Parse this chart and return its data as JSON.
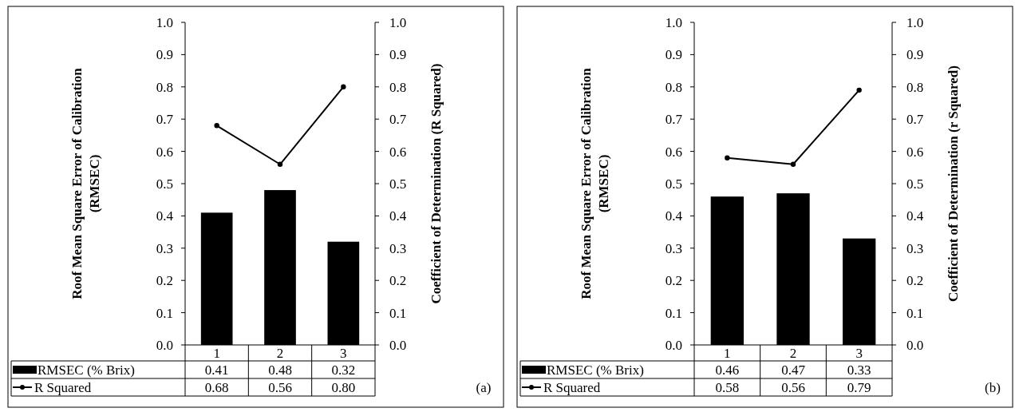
{
  "chart_data": [
    {
      "type": "bar",
      "categories": [
        "1",
        "2",
        "3"
      ],
      "series": [
        {
          "name": "RMSEC (% Brix)",
          "color": "#000000",
          "values": [
            0.41,
            0.48,
            0.32
          ],
          "value_labels": [
            "0.41",
            "0.48",
            "0.32"
          ]
        },
        {
          "name": "R Squared",
          "type": "line",
          "axis": "y2",
          "color": "#000000",
          "values": [
            0.68,
            0.56,
            0.8
          ],
          "value_labels": [
            "0.68",
            "0.56",
            "0.80"
          ]
        }
      ],
      "ylabel": "Roof Mean Square Error of Calibration (RMSEC)",
      "y2label": "Coefficient of Determination (R Squared)",
      "ylim": [
        0,
        1
      ],
      "yticks": [
        {
          "value": 0,
          "label": "0.0"
        },
        {
          "value": 0.1,
          "label": "0.1"
        },
        {
          "value": 0.2,
          "label": "0.2"
        },
        {
          "value": 0.3,
          "label": "0.3"
        },
        {
          "value": 0.4,
          "label": "0.4"
        },
        {
          "value": 0.5,
          "label": "0.5"
        },
        {
          "value": 0.6,
          "label": "0.6"
        },
        {
          "value": 0.7,
          "label": "0.7"
        },
        {
          "value": 0.8,
          "label": "0.8"
        },
        {
          "value": 0.9,
          "label": "0.9"
        },
        {
          "value": 1,
          "label": "1.0"
        }
      ],
      "y2lim": [
        0,
        1
      ],
      "y2ticks": [
        {
          "value": 0,
          "label": "0.0"
        },
        {
          "value": 0.1,
          "label": "0.1"
        },
        {
          "value": 0.2,
          "label": "0.2"
        },
        {
          "value": 0.3,
          "label": "0.3"
        },
        {
          "value": 0.4,
          "label": "0.4"
        },
        {
          "value": 0.5,
          "label": "0.5"
        },
        {
          "value": 0.6,
          "label": "0.6"
        },
        {
          "value": 0.7,
          "label": "0.7"
        },
        {
          "value": 0.8,
          "label": "0.8"
        },
        {
          "value": 0.9,
          "label": "0.9"
        },
        {
          "value": 1,
          "label": "1.0"
        }
      ],
      "legend": "bottom",
      "marker": "circle",
      "annotations": [
        "(a)"
      ]
    },
    {
      "type": "bar",
      "categories": [
        "1",
        "2",
        "3"
      ],
      "series": [
        {
          "name": "RMSEC (% Brix)",
          "color": "#000000",
          "values": [
            0.46,
            0.47,
            0.33
          ],
          "value_labels": [
            "0.46",
            "0.47",
            "0.33"
          ]
        },
        {
          "name": "R Squared",
          "type": "line",
          "axis": "y2",
          "color": "#000000",
          "values": [
            0.58,
            0.56,
            0.79
          ],
          "value_labels": [
            "0.58",
            "0.56",
            "0.79"
          ]
        }
      ],
      "ylabel": "Roof Mean Square Error of Calibration (RMSEC)",
      "y2label": "Coefficient of Determination (r Squared)",
      "ylim": [
        0,
        1
      ],
      "yticks": [
        {
          "value": 0,
          "label": "0.0"
        },
        {
          "value": 0.1,
          "label": "0.1"
        },
        {
          "value": 0.2,
          "label": "0.2"
        },
        {
          "value": 0.3,
          "label": "0.3"
        },
        {
          "value": 0.4,
          "label": "0.4"
        },
        {
          "value": 0.5,
          "label": "0.5"
        },
        {
          "value": 0.6,
          "label": "0.6"
        },
        {
          "value": 0.7,
          "label": "0.7"
        },
        {
          "value": 0.8,
          "label": "0.8"
        },
        {
          "value": 0.9,
          "label": "0.9"
        },
        {
          "value": 1,
          "label": "1.0"
        }
      ],
      "y2lim": [
        0,
        1
      ],
      "y2ticks": [
        {
          "value": 0,
          "label": "0.0"
        },
        {
          "value": 0.1,
          "label": "0.1"
        },
        {
          "value": 0.2,
          "label": "0.2"
        },
        {
          "value": 0.3,
          "label": "0.3"
        },
        {
          "value": 0.4,
          "label": "0.4"
        },
        {
          "value": 0.5,
          "label": "0.5"
        },
        {
          "value": 0.6,
          "label": "0.6"
        },
        {
          "value": 0.7,
          "label": "0.7"
        },
        {
          "value": 0.8,
          "label": "0.8"
        },
        {
          "value": 0.9,
          "label": "0.9"
        },
        {
          "value": 1,
          "label": "1.0"
        }
      ],
      "legend": "bottom",
      "marker": "circle",
      "annotations": [
        "(b)"
      ]
    }
  ]
}
